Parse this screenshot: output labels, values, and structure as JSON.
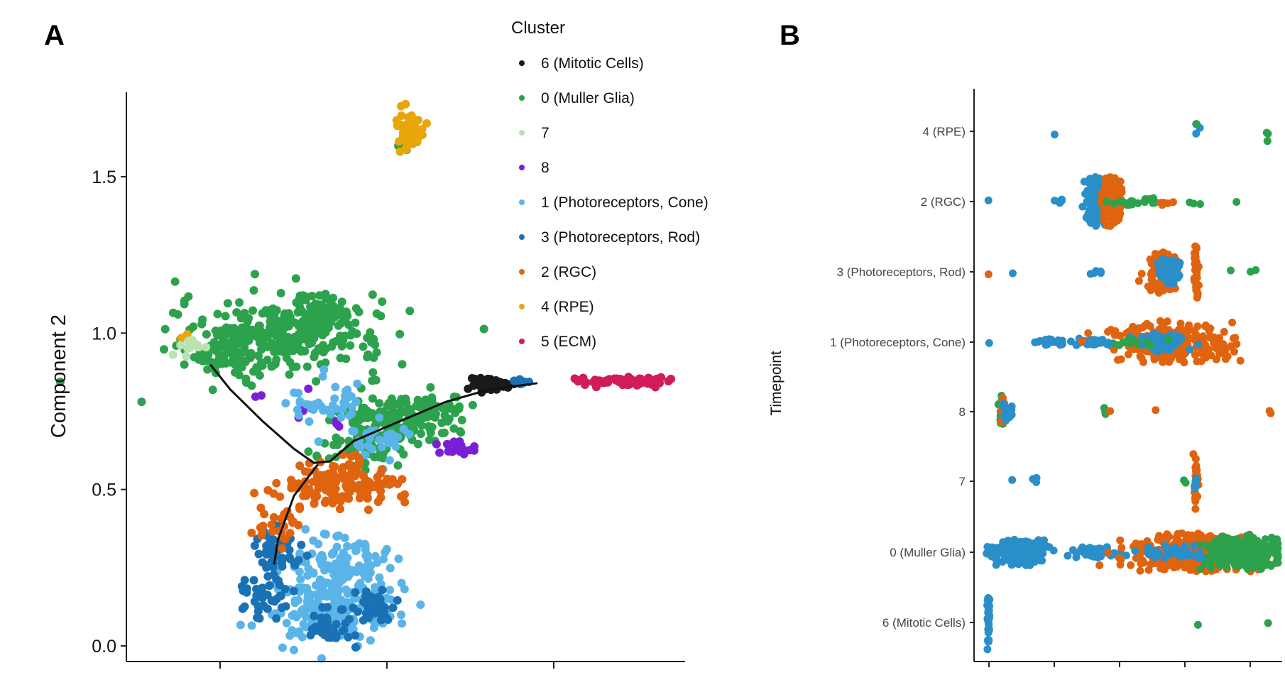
{
  "panels": {
    "a_label": "A",
    "b_label": "B"
  },
  "colors": {
    "6": "#1a1a1a",
    "0": "#2ca24d",
    "7": "#b9e3b3",
    "8": "#7b1fd6",
    "1": "#5ab4e8",
    "3": "#1a72b4",
    "2": "#e0640f",
    "4": "#e8a60a",
    "5": "#d01c5a",
    "trajectory": "#111111",
    "axis": "#222222"
  },
  "chart_data": [
    {
      "id": "A",
      "type": "scatter",
      "title": "",
      "xlabel": "",
      "ylabel": "Component 2",
      "ylim": [
        -0.05,
        1.77
      ],
      "yticks": [
        0.0,
        0.5,
        1.0,
        1.5
      ],
      "ytick_labels": [
        "0.0",
        "0.5",
        "1.0",
        "1.5"
      ],
      "xticks_count": 3,
      "xtick_labels_visible": false,
      "legend": {
        "title": "Cluster",
        "placement": "right",
        "entries": [
          {
            "key": "6",
            "label": "6 (Mitotic Cells)"
          },
          {
            "key": "0",
            "label": "0 (Muller Glia)"
          },
          {
            "key": "7",
            "label": "7"
          },
          {
            "key": "8",
            "label": "8"
          },
          {
            "key": "1",
            "label": "1 (Photoreceptors, Cone)"
          },
          {
            "key": "3",
            "label": "3 (Photoreceptors, Rod)"
          },
          {
            "key": "2",
            "label": "2 (RGC)"
          },
          {
            "key": "4",
            "label": "4 (RPE)"
          },
          {
            "key": "5",
            "label": "5 (ECM)"
          }
        ]
      },
      "trajectory": [
        {
          "id": "upper-left",
          "points": [
            [
              0.26,
              0.9
            ],
            [
              0.31,
              0.82
            ],
            [
              0.39,
              0.72
            ],
            [
              0.47,
              0.63
            ],
            [
              0.52,
              0.585
            ],
            [
              0.56,
              0.59
            ]
          ]
        },
        {
          "id": "lower-trunk",
          "points": [
            [
              0.53,
              0.58
            ],
            [
              0.47,
              0.48
            ],
            [
              0.43,
              0.34
            ],
            [
              0.42,
              0.26
            ]
          ]
        },
        {
          "id": "right-branch",
          "points": [
            [
              0.56,
              0.59
            ],
            [
              0.62,
              0.655
            ],
            [
              0.72,
              0.71
            ],
            [
              0.85,
              0.78
            ],
            [
              0.96,
              0.82
            ],
            [
              1.08,
              0.84
            ]
          ]
        }
      ],
      "series": [
        {
          "key": "0",
          "regions": [
            {
              "c": [
                0.44,
                0.99
              ],
              "s": [
                0.13,
                0.06
              ],
              "n": 300
            },
            {
              "c": [
                0.53,
                1.06
              ],
              "s": [
                0.05,
                0.03
              ],
              "n": 70
            },
            {
              "c": [
                0.28,
                0.92
              ],
              "s": [
                0.06,
                0.025
              ],
              "n": 40
            },
            {
              "c": [
                0.73,
                0.72
              ],
              "s": [
                0.07,
                0.045
              ],
              "n": 170
            },
            {
              "c": [
                0.63,
                0.63
              ],
              "s": [
                0.05,
                0.03
              ],
              "n": 40
            },
            {
              "c": [
                0.84,
                0.77
              ],
              "s": [
                0.03,
                0.02
              ],
              "n": 20
            },
            {
              "c": [
                0.75,
                1.6
              ],
              "s": [
                0.008,
                0.008
              ],
              "n": 10
            }
          ]
        },
        {
          "key": "4",
          "regions": [
            {
              "c": [
                0.755,
                1.655
              ],
              "s": [
                0.018,
                0.032
              ],
              "n": 45
            },
            {
              "c": [
                0.2,
                0.99
              ],
              "s": [
                0.008,
                0.008
              ],
              "n": 2
            }
          ]
        },
        {
          "key": "7",
          "regions": [
            {
              "c": [
                0.21,
                0.955
              ],
              "s": [
                0.02,
                0.015
              ],
              "n": 14
            }
          ]
        },
        {
          "key": "6",
          "regions": [
            {
              "c": [
                0.95,
                0.835
              ],
              "s": [
                0.018,
                0.012
              ],
              "n": 28
            },
            {
              "c": [
                1.01,
                0.835
              ],
              "s": [
                0.015,
                0.008
              ],
              "n": 8
            },
            {
              "c": [
                1.19,
                0.85
              ],
              "s": [
                0.004,
                0.004
              ],
              "n": 2
            }
          ]
        },
        {
          "key": "5",
          "regions": [
            {
              "c": [
                1.29,
                0.846
              ],
              "s": [
                0.055,
                0.007
              ],
              "n": 70
            }
          ]
        },
        {
          "key": "8",
          "regions": [
            {
              "c": [
                0.89,
                0.63
              ],
              "s": [
                0.028,
                0.015
              ],
              "n": 18
            },
            {
              "c": [
                0.5,
                0.77
              ],
              "s": [
                0.012,
                0.02
              ],
              "n": 6
            },
            {
              "c": [
                0.58,
                0.7
              ],
              "s": [
                0.008,
                0.01
              ],
              "n": 3
            },
            {
              "c": [
                0.38,
                0.8
              ],
              "s": [
                0.006,
                0.006
              ],
              "n": 2
            }
          ]
        },
        {
          "key": "1",
          "regions": [
            {
              "c": [
                0.57,
                0.14
              ],
              "s": [
                0.08,
                0.065
              ],
              "n": 230
            },
            {
              "c": [
                0.58,
                0.28
              ],
              "s": [
                0.06,
                0.04
              ],
              "n": 60
            },
            {
              "c": [
                0.56,
                0.77
              ],
              "s": [
                0.045,
                0.04
              ],
              "n": 40
            },
            {
              "c": [
                0.68,
                0.66
              ],
              "s": [
                0.04,
                0.03
              ],
              "n": 30
            }
          ]
        },
        {
          "key": "3",
          "regions": [
            {
              "c": [
                0.43,
                0.3
              ],
              "s": [
                0.025,
                0.04
              ],
              "n": 50
            },
            {
              "c": [
                0.39,
                0.17
              ],
              "s": [
                0.03,
                0.04
              ],
              "n": 40
            },
            {
              "c": [
                0.67,
                0.13
              ],
              "s": [
                0.025,
                0.025
              ],
              "n": 50
            },
            {
              "c": [
                0.56,
                0.06
              ],
              "s": [
                0.035,
                0.03
              ],
              "n": 40
            },
            {
              "c": [
                1.04,
                0.84
              ],
              "s": [
                0.01,
                0.006
              ],
              "n": 6
            }
          ]
        },
        {
          "key": "2",
          "regions": [
            {
              "c": [
                0.55,
                0.51
              ],
              "s": [
                0.07,
                0.035
              ],
              "n": 90
            },
            {
              "c": [
                0.69,
                0.51
              ],
              "s": [
                0.04,
                0.025
              ],
              "n": 40
            },
            {
              "c": [
                0.43,
                0.39
              ],
              "s": [
                0.03,
                0.035
              ],
              "n": 25
            },
            {
              "c": [
                0.62,
                0.58
              ],
              "s": [
                0.02,
                0.02
              ],
              "n": 10
            }
          ]
        }
      ]
    },
    {
      "id": "B",
      "type": "scatter",
      "title": "",
      "xlabel": "",
      "ylabel": "Timepoint",
      "xticks_count": 5,
      "xtick_labels_visible": false,
      "categories": [
        "4 (RPE)",
        "2 (RGC)",
        "3 (Photoreceptors, Rod)",
        "1 (Photoreceptors, Cone)",
        "8",
        "7",
        "0 (Muller Glia)",
        "6 (Mitotic Cells)"
      ],
      "tick_labels": [
        "4 (RPE)",
        "2 (RGC)",
        "3 (Photoreceptors, Rod)",
        "1 (Photoreceptors, Cone)",
        "8",
        "7",
        "0 (Muller Glia)",
        "6 (Mitotic Cells)"
      ],
      "xlim": [
        0,
        1
      ],
      "swarm_colors": [
        "#2a8fc9",
        "#e0640f",
        "#2ca24d"
      ],
      "rows": [
        {
          "cat": "4 (RPE)",
          "groups": [
            {
              "color": 0,
              "x": 0.23,
              "w": 0.003,
              "h": 0.1,
              "n": 1
            },
            {
              "color": 0,
              "x": 0.72,
              "w": 0.003,
              "h": 0.5,
              "n": 3
            },
            {
              "color": 2,
              "x": 0.72,
              "w": 0.003,
              "h": 0.3,
              "n": 1
            },
            {
              "color": 2,
              "x": 0.96,
              "w": 0.003,
              "h": 0.45,
              "n": 3
            }
          ]
        },
        {
          "cat": "2 (RGC)",
          "groups": [
            {
              "color": 0,
              "x": 0.005,
              "w": 0.003,
              "h": 0.1,
              "n": 1
            },
            {
              "color": 0,
              "x": 0.25,
              "w": 0.01,
              "h": 0.1,
              "n": 6
            },
            {
              "color": 0,
              "x": 0.38,
              "w": 0.02,
              "h": 0.7,
              "n": 150
            },
            {
              "color": 1,
              "x": 0.43,
              "w": 0.018,
              "h": 0.7,
              "n": 120
            },
            {
              "color": 2,
              "x": 0.52,
              "w": 0.04,
              "h": 0.1,
              "n": 20
            },
            {
              "color": 1,
              "x": 0.6,
              "w": 0.02,
              "h": 0.1,
              "n": 5
            },
            {
              "color": 2,
              "x": 0.72,
              "w": 0.02,
              "h": 0.1,
              "n": 3
            },
            {
              "color": 2,
              "x": 0.85,
              "w": 0.003,
              "h": 0.1,
              "n": 1
            }
          ]
        },
        {
          "cat": "3 (Photoreceptors, Rod)",
          "groups": [
            {
              "color": 1,
              "x": 0.005,
              "w": 0.003,
              "h": 0.1,
              "n": 1
            },
            {
              "color": 0,
              "x": 0.09,
              "w": 0.003,
              "h": 0.1,
              "n": 1
            },
            {
              "color": 0,
              "x": 0.375,
              "w": 0.02,
              "h": 0.1,
              "n": 5
            },
            {
              "color": 1,
              "x": 0.6,
              "w": 0.025,
              "h": 0.6,
              "n": 90
            },
            {
              "color": 0,
              "x": 0.63,
              "w": 0.02,
              "h": 0.4,
              "n": 50
            },
            {
              "color": 1,
              "x": 0.715,
              "w": 0.004,
              "h": 0.8,
              "n": 40
            },
            {
              "color": 2,
              "x": 0.88,
              "w": 0.03,
              "h": 0.1,
              "n": 3
            }
          ]
        },
        {
          "cat": "1 (Photoreceptors, Cone)",
          "groups": [
            {
              "color": 0,
              "x": 0.005,
              "w": 0.003,
              "h": 0.1,
              "n": 1
            },
            {
              "color": 0,
              "x": 0.22,
              "w": 0.03,
              "h": 0.1,
              "n": 30
            },
            {
              "color": 0,
              "x": 0.36,
              "w": 0.03,
              "h": 0.12,
              "n": 30
            },
            {
              "color": 1,
              "x": 0.62,
              "w": 0.1,
              "h": 0.6,
              "n": 220
            },
            {
              "color": 0,
              "x": 0.6,
              "w": 0.05,
              "h": 0.3,
              "n": 60
            },
            {
              "color": 2,
              "x": 0.5,
              "w": 0.04,
              "h": 0.1,
              "n": 15
            }
          ]
        },
        {
          "cat": "8",
          "groups": [
            {
              "color": 2,
              "x": 0.05,
              "w": 0.004,
              "h": 0.5,
              "n": 14
            },
            {
              "color": 1,
              "x": 0.055,
              "w": 0.005,
              "h": 0.5,
              "n": 12
            },
            {
              "color": 0,
              "x": 0.07,
              "w": 0.008,
              "h": 0.25,
              "n": 14
            },
            {
              "color": 2,
              "x": 0.405,
              "w": 0.004,
              "h": 0.15,
              "n": 5
            },
            {
              "color": 1,
              "x": 0.42,
              "w": 0.003,
              "h": 0.1,
              "n": 1
            },
            {
              "color": 1,
              "x": 0.58,
              "w": 0.003,
              "h": 0.1,
              "n": 1
            },
            {
              "color": 1,
              "x": 0.97,
              "w": 0.003,
              "h": 0.2,
              "n": 3
            }
          ]
        },
        {
          "cat": "7",
          "groups": [
            {
              "color": 0,
              "x": 0.085,
              "w": 0.003,
              "h": 0.1,
              "n": 1
            },
            {
              "color": 0,
              "x": 0.165,
              "w": 0.008,
              "h": 0.1,
              "n": 3
            },
            {
              "color": 2,
              "x": 0.68,
              "w": 0.005,
              "h": 0.1,
              "n": 2
            },
            {
              "color": 1,
              "x": 0.715,
              "w": 0.003,
              "h": 0.85,
              "n": 28
            },
            {
              "color": 0,
              "x": 0.715,
              "w": 0.003,
              "h": 0.35,
              "n": 8
            }
          ]
        },
        {
          "cat": "0 (Muller Glia)",
          "groups": [
            {
              "color": 0,
              "x": 0.02,
              "w": 0.01,
              "h": 0.25,
              "n": 20
            },
            {
              "color": 0,
              "x": 0.12,
              "w": 0.04,
              "h": 0.38,
              "n": 220
            },
            {
              "color": 0,
              "x": 0.38,
              "w": 0.04,
              "h": 0.16,
              "n": 60
            },
            {
              "color": 1,
              "x": 0.7,
              "w": 0.1,
              "h": 0.55,
              "n": 320
            },
            {
              "color": 2,
              "x": 0.88,
              "w": 0.07,
              "h": 0.5,
              "n": 240
            },
            {
              "color": 0,
              "x": 0.62,
              "w": 0.05,
              "h": 0.2,
              "n": 40
            }
          ]
        },
        {
          "cat": "6 (Mitotic Cells)",
          "groups": [
            {
              "color": 0,
              "x": 0.005,
              "w": 0.002,
              "h": 0.85,
              "n": 40
            },
            {
              "color": 2,
              "x": 0.715,
              "w": 0.003,
              "h": 0.1,
              "n": 1
            },
            {
              "color": 2,
              "x": 0.965,
              "w": 0.003,
              "h": 0.1,
              "n": 1
            }
          ]
        }
      ]
    }
  ]
}
